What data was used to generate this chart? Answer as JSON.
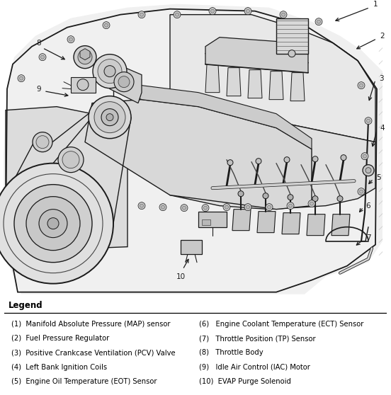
{
  "background_color": "#ffffff",
  "legend_title": "Legend",
  "legend_title_fontsize": 8.5,
  "legend_fontsize": 7.2,
  "legend_items_left": [
    "(1)  Manifold Absolute Pressure (MAP) sensor",
    "(2)  Fuel Pressure Regulator",
    "(3)  Positive Crankcase Ventilation (PCV) Valve",
    "(4)  Left Bank Ignition Coils",
    "(5)  Engine Oil Temperature (EOT) Sensor"
  ],
  "legend_items_right": [
    "(6)   Engine Coolant Temperature (ECT) Sensor",
    "(7)   Throttle Position (TP) Sensor",
    "(8)   Throttle Body",
    "(9)   Idle Air Control (IAC) Motor",
    "(10)  EVAP Purge Solenoid"
  ]
}
